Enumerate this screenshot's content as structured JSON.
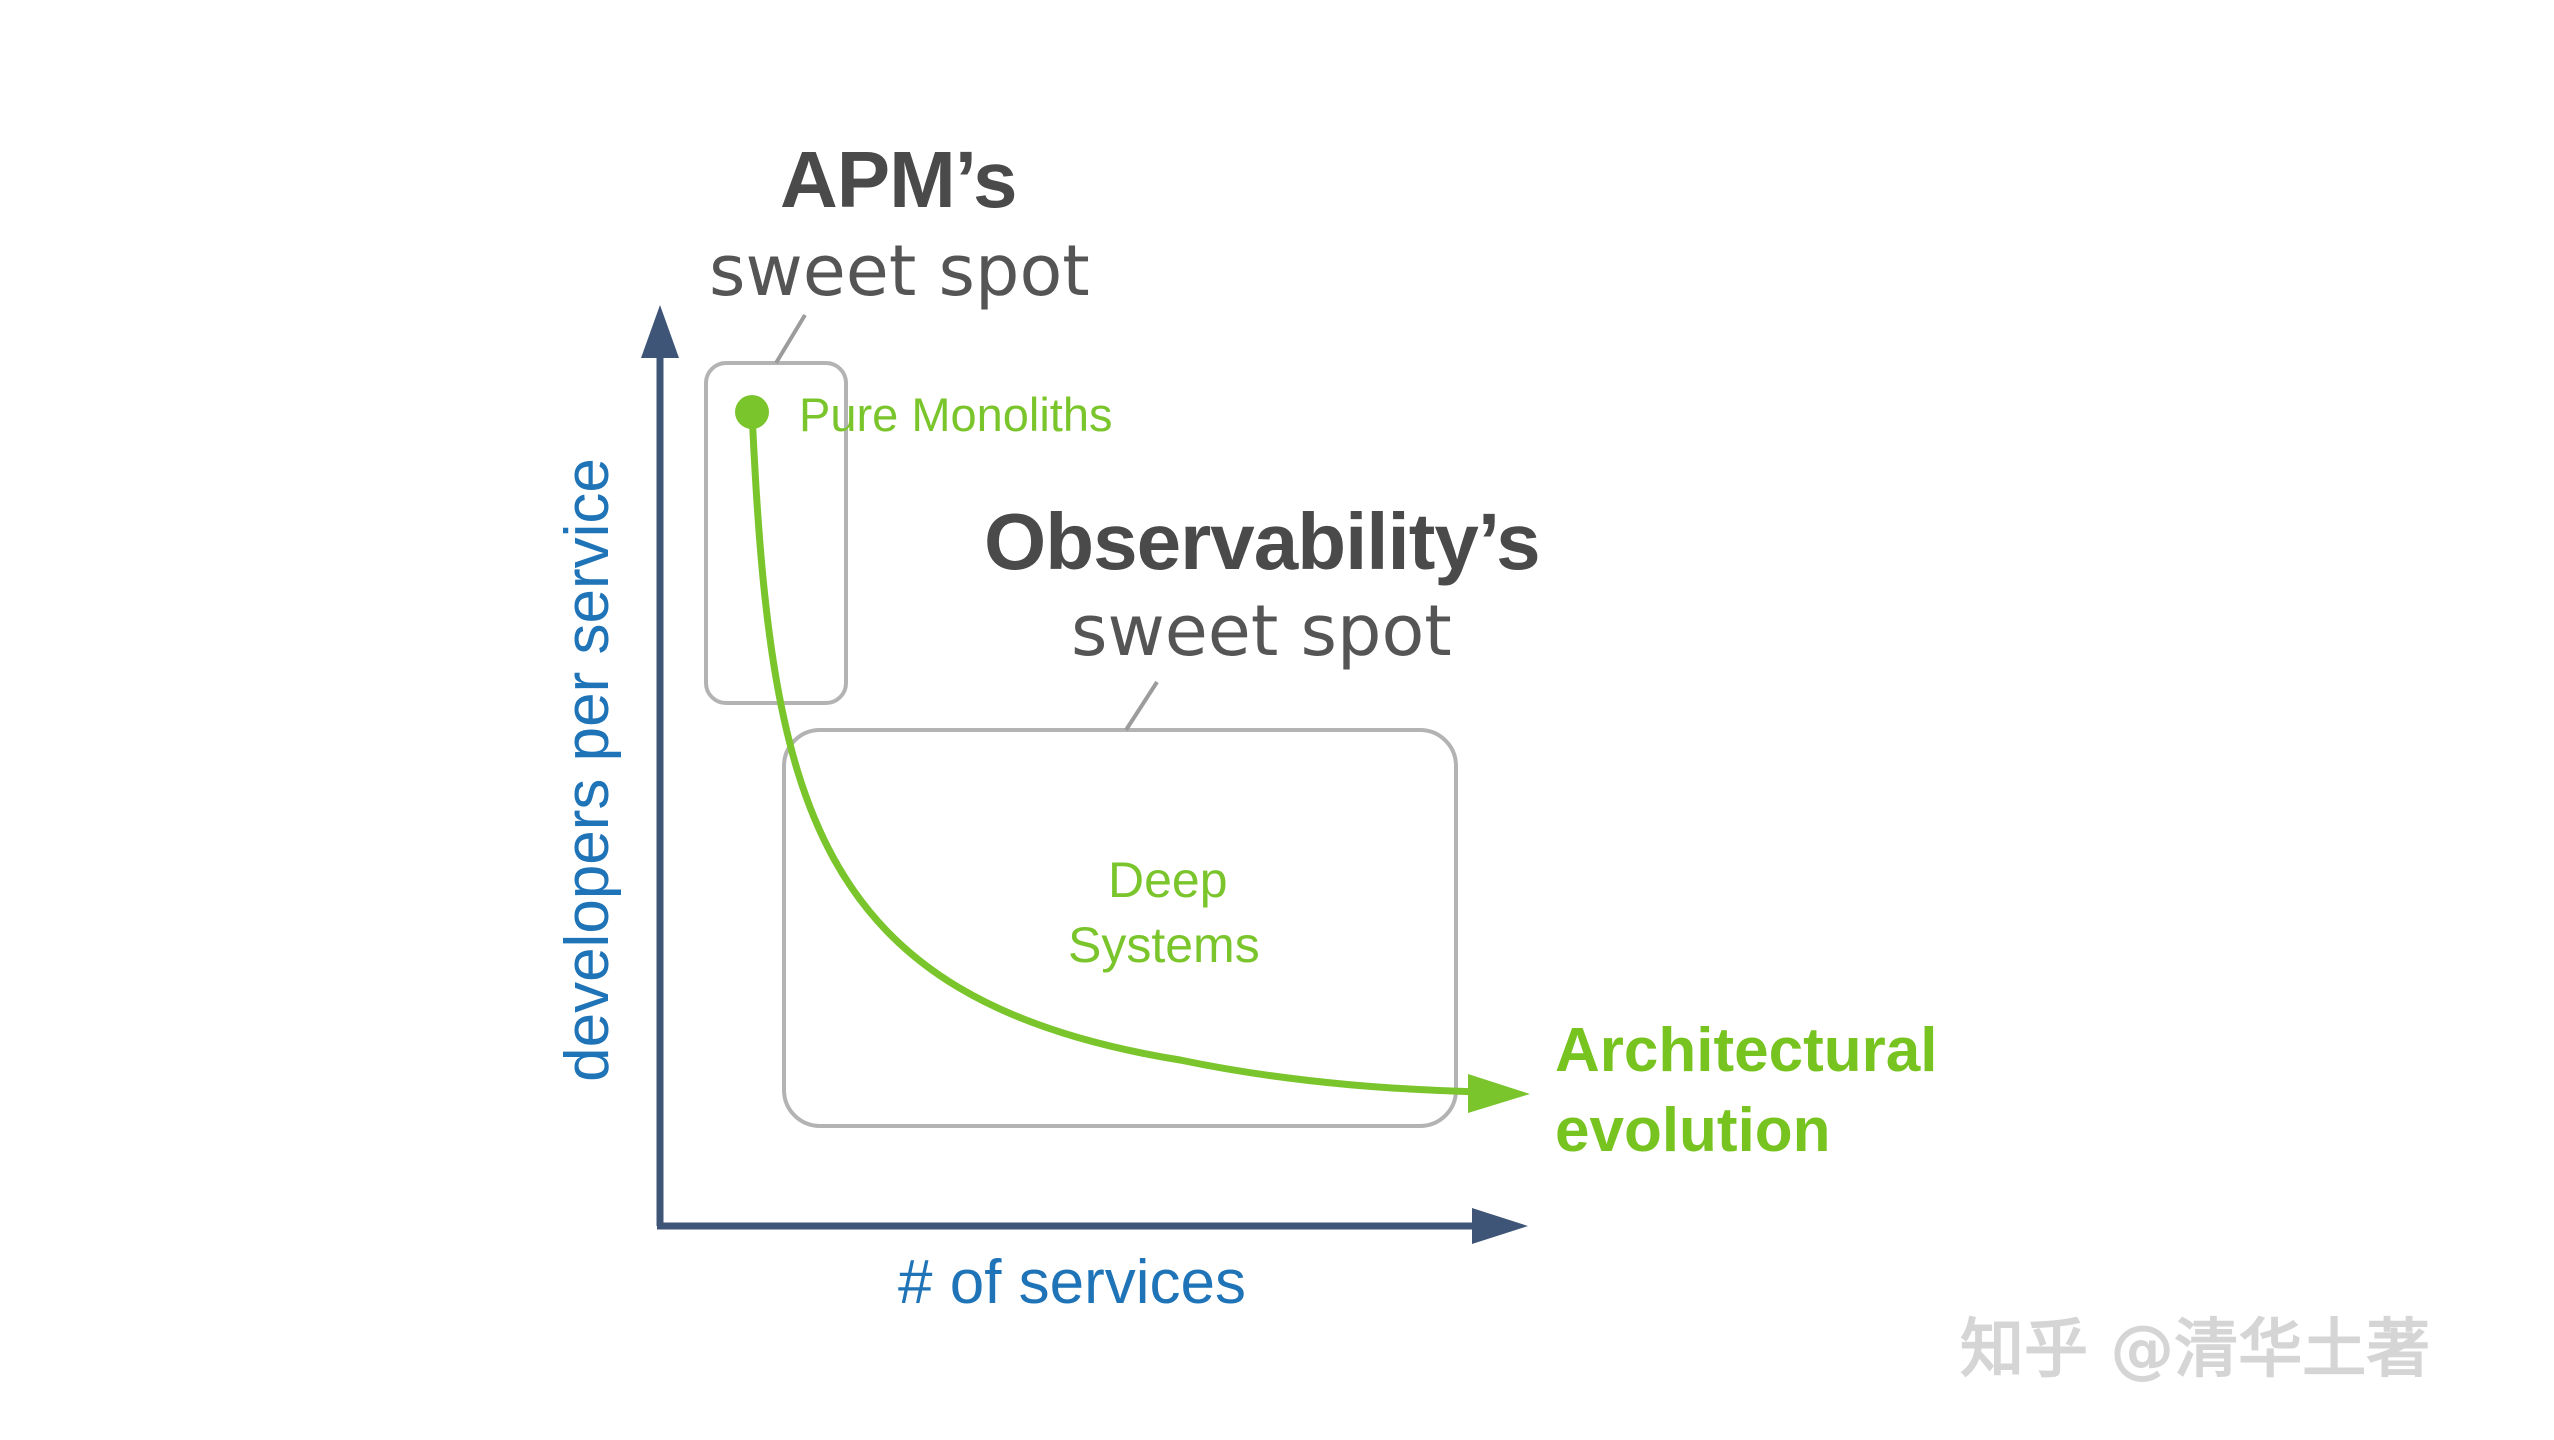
{
  "apm": {
    "title": "APM’s",
    "subtitle": "sweet spot"
  },
  "observability": {
    "title": "Observability’s",
    "subtitle": "sweet spot"
  },
  "regions": {
    "pure_monoliths": "Pure Monoliths",
    "deep_systems_line1": "Deep",
    "deep_systems_line2": "Systems"
  },
  "curve": {
    "label_line1": "Architectural",
    "label_line2": "evolution"
  },
  "axes": {
    "y_label": "developers per service",
    "x_label": "# of services"
  },
  "watermark": "知乎 @清华土著",
  "colors": {
    "axis": "#3f5578",
    "curve": "#7bc52c",
    "box": "#b3b3b3",
    "axis_text": "#1f73b7",
    "heading": "#4a4a4a"
  }
}
